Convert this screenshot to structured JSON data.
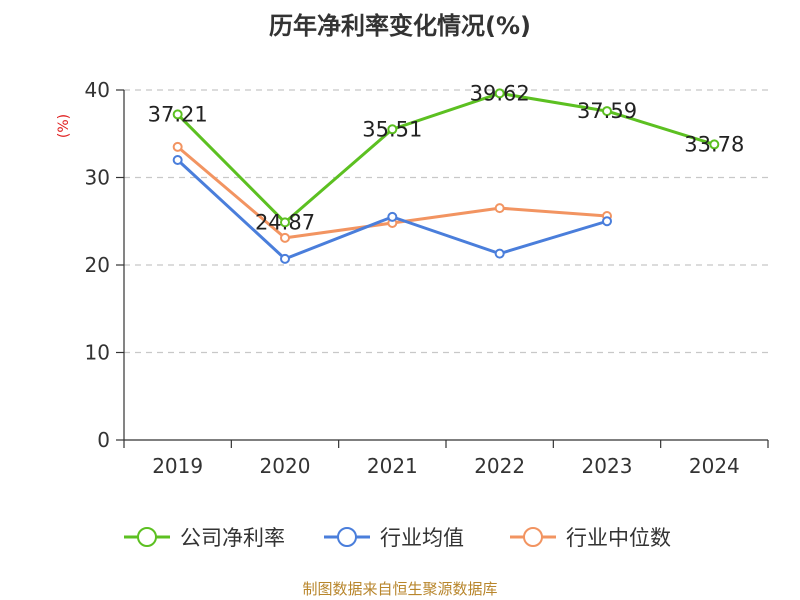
{
  "title": "历年净利率变化情况(%)",
  "source": "制图数据来自恒生聚源数据库",
  "chart_data": {
    "type": "line",
    "title": "历年净利率变化情况(%)",
    "xlabel": "",
    "ylabel": "(%)",
    "categories": [
      "2019",
      "2020",
      "2021",
      "2022",
      "2023",
      "2024"
    ],
    "ylim": [
      0,
      40
    ],
    "yticks": [
      0,
      10,
      20,
      30,
      40
    ],
    "grid": true,
    "legend_position": "bottom",
    "series": [
      {
        "name": "公司净利率",
        "color": "#5cc021",
        "values": [
          37.21,
          24.87,
          35.51,
          39.62,
          37.59,
          33.78
        ],
        "labels": true
      },
      {
        "name": "行业均值",
        "color": "#4a7edb",
        "values": [
          32.0,
          20.7,
          25.5,
          21.3,
          25.0,
          null
        ],
        "labels": false
      },
      {
        "name": "行业中位数",
        "color": "#f29461",
        "values": [
          33.5,
          23.1,
          24.8,
          26.5,
          25.6,
          null
        ],
        "labels": false
      }
    ]
  }
}
